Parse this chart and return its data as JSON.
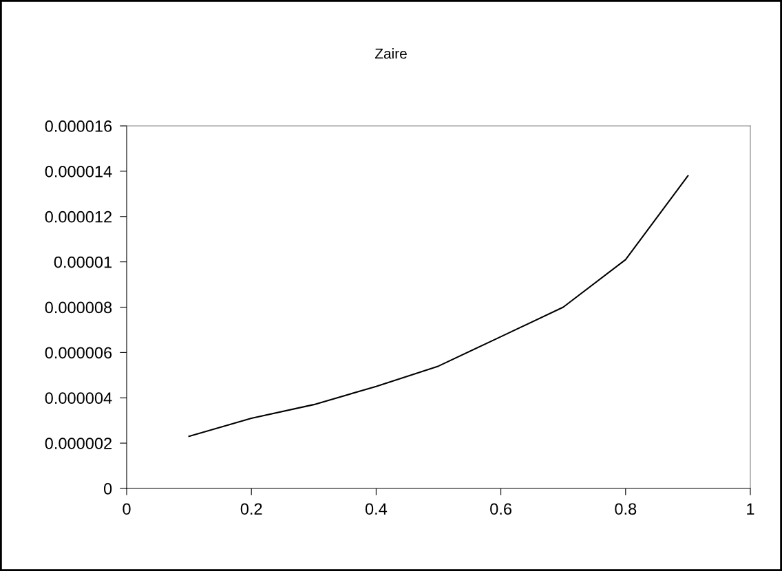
{
  "chart_data": {
    "type": "line",
    "title": "Zaire",
    "x": [
      0.1,
      0.2,
      0.3,
      0.4,
      0.5,
      0.6,
      0.7,
      0.8,
      0.9
    ],
    "series": [
      {
        "color": "#000000",
        "values": [
          2.3e-06,
          3.1e-06,
          3.7e-06,
          4.5e-06,
          5.4e-06,
          6.7e-06,
          8e-06,
          1.01e-05,
          1.38e-05
        ]
      }
    ],
    "xlim": [
      0,
      1
    ],
    "xticks": [
      0,
      0.2,
      0.4,
      0.6,
      0.8,
      1
    ],
    "ylim": [
      0,
      1.6e-05
    ],
    "yticks": [
      0,
      {
        "value": 2e-06,
        "label": "0.000002"
      },
      {
        "value": 4e-06,
        "label": "0.000004"
      },
      {
        "value": 6e-06,
        "label": "0.000006"
      },
      {
        "value": 8e-06,
        "label": "0.000008"
      },
      {
        "value": 1e-05,
        "label": "0.00001"
      },
      {
        "value": 1.2e-05,
        "label": "0.000012"
      },
      {
        "value": 1.4e-05,
        "label": "0.000014"
      },
      {
        "value": 1.6e-05,
        "label": "0.000016"
      }
    ],
    "grid": false,
    "legend": false,
    "marker": "none",
    "line_style": "solid"
  }
}
